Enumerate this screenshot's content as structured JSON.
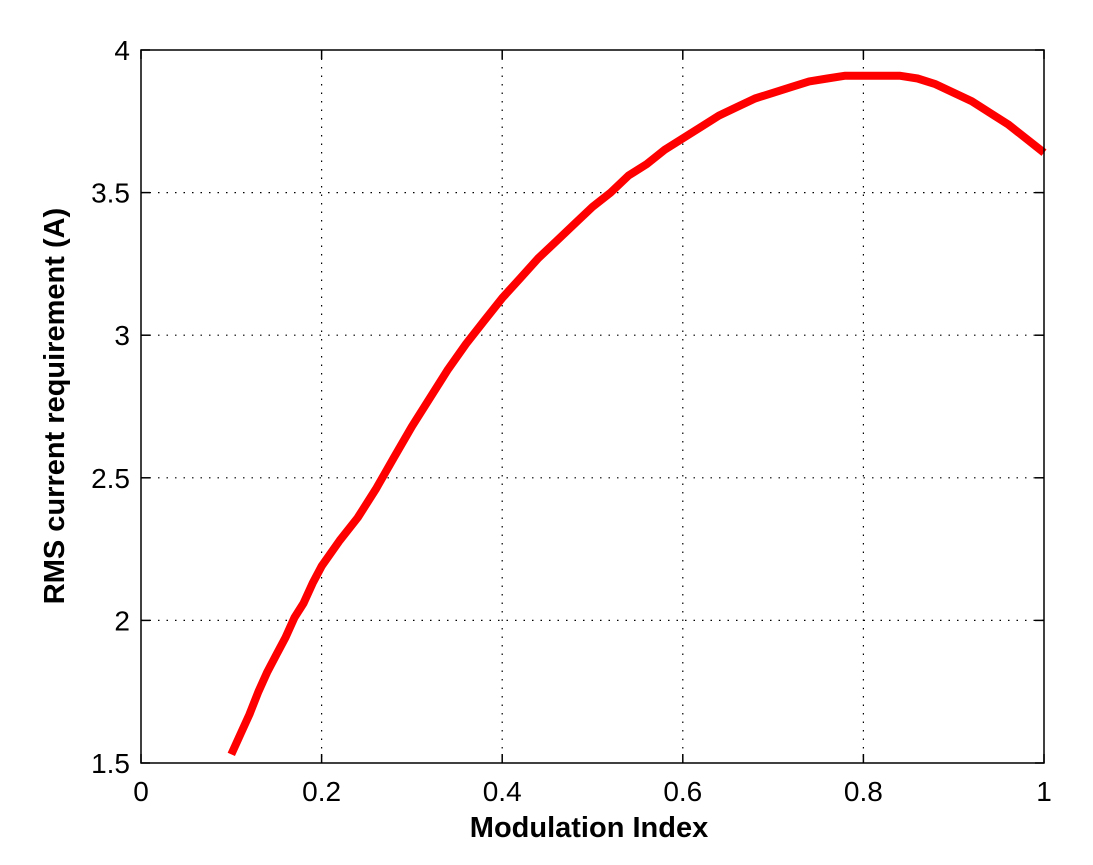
{
  "chart_data": {
    "type": "line",
    "xlabel": "Modulation Index",
    "ylabel": "RMS current requirement (A)",
    "xlim": [
      0,
      1
    ],
    "ylim": [
      1.5,
      4
    ],
    "x_ticks": [
      0,
      0.2,
      0.4,
      0.6,
      0.8,
      1
    ],
    "x_tick_labels": [
      "0",
      "0.2",
      "0.4",
      "0.6",
      "0.8",
      "1"
    ],
    "y_ticks": [
      1.5,
      2,
      2.5,
      3,
      3.5,
      4
    ],
    "y_tick_labels": [
      "1.5",
      "2",
      "2.5",
      "3",
      "3.5",
      "4"
    ],
    "grid": true,
    "series": [
      {
        "color": "#ff0000",
        "x": [
          0.1,
          0.11,
          0.12,
          0.13,
          0.14,
          0.15,
          0.16,
          0.17,
          0.18,
          0.19,
          0.2,
          0.22,
          0.24,
          0.26,
          0.28,
          0.3,
          0.32,
          0.34,
          0.36,
          0.38,
          0.4,
          0.42,
          0.44,
          0.46,
          0.48,
          0.5,
          0.52,
          0.54,
          0.56,
          0.58,
          0.6,
          0.62,
          0.64,
          0.66,
          0.68,
          0.7,
          0.72,
          0.74,
          0.76,
          0.78,
          0.8,
          0.82,
          0.84,
          0.86,
          0.88,
          0.9,
          0.92,
          0.94,
          0.96,
          0.98,
          1.0
        ],
        "y": [
          1.53,
          1.6,
          1.67,
          1.75,
          1.82,
          1.88,
          1.94,
          2.01,
          2.06,
          2.13,
          2.19,
          2.28,
          2.36,
          2.46,
          2.57,
          2.68,
          2.78,
          2.88,
          2.97,
          3.05,
          3.13,
          3.2,
          3.27,
          3.33,
          3.39,
          3.45,
          3.5,
          3.56,
          3.6,
          3.65,
          3.69,
          3.73,
          3.77,
          3.8,
          3.83,
          3.85,
          3.87,
          3.89,
          3.9,
          3.91,
          3.91,
          3.91,
          3.91,
          3.9,
          3.88,
          3.85,
          3.82,
          3.78,
          3.74,
          3.69,
          3.64
        ]
      }
    ]
  }
}
